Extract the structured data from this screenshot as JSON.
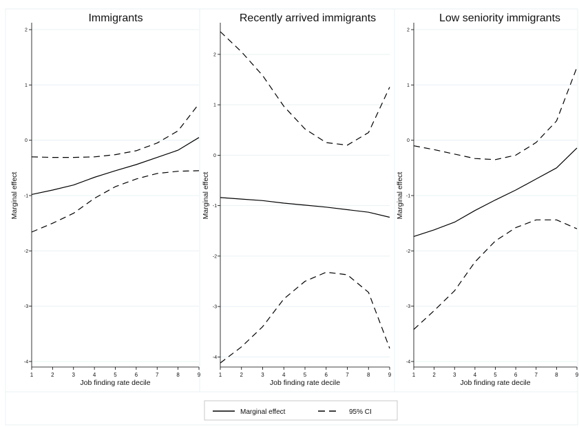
{
  "legend": {
    "items": [
      {
        "label": "Marginal effect",
        "dash": "solid"
      },
      {
        "label": "95% CI",
        "dash": "dashed"
      }
    ]
  },
  "chart_data": [
    {
      "type": "line",
      "title": "Immigrants",
      "xlabel": "Job finding rate decile",
      "ylabel": "Marginal effect",
      "x": [
        1,
        2,
        3,
        4,
        5,
        6,
        7,
        8,
        9
      ],
      "ylim": [
        -4.1,
        2.1
      ],
      "yticks": [
        -4,
        -3,
        -2,
        -1,
        0,
        1,
        2
      ],
      "grid": true,
      "series": [
        {
          "name": "Marginal effect",
          "values": [
            -0.98,
            -0.9,
            -0.81,
            -0.67,
            -0.55,
            -0.44,
            -0.31,
            -0.18,
            0.05
          ]
        },
        {
          "name": "95% CI",
          "values": [
            -0.3,
            -0.31,
            -0.31,
            -0.3,
            -0.26,
            -0.19,
            -0.05,
            0.17,
            0.66
          ]
        },
        {
          "name": "95% CI",
          "values": [
            -1.66,
            -1.5,
            -1.32,
            -1.05,
            -0.84,
            -0.7,
            -0.6,
            -0.56,
            -0.55
          ]
        }
      ]
    },
    {
      "type": "line",
      "title": "Recently arrived immigrants",
      "xlabel": "Job finding rate decile",
      "ylabel": "Marginal effect",
      "x": [
        1,
        2,
        3,
        4,
        5,
        6,
        7,
        8,
        9
      ],
      "ylim": [
        -4.2,
        2.6
      ],
      "yticks": [
        -4,
        -3,
        -2,
        -1,
        0,
        1,
        2
      ],
      "grid": true,
      "series": [
        {
          "name": "Marginal effect",
          "values": [
            -0.84,
            -0.87,
            -0.9,
            -0.95,
            -0.99,
            -1.03,
            -1.08,
            -1.13,
            -1.23
          ]
        },
        {
          "name": "95% CI",
          "values": [
            2.45,
            2.05,
            1.58,
            0.97,
            0.52,
            0.25,
            0.2,
            0.45,
            1.35
          ]
        },
        {
          "name": "95% CI",
          "values": [
            -4.12,
            -3.8,
            -3.4,
            -2.85,
            -2.5,
            -2.32,
            -2.37,
            -2.72,
            -3.83
          ]
        }
      ]
    },
    {
      "type": "line",
      "title": "Low seniority immigrants",
      "xlabel": "Job finding rate decile",
      "ylabel": "Marginal effect",
      "x": [
        1,
        2,
        3,
        4,
        5,
        6,
        7,
        8,
        9
      ],
      "ylim": [
        -4.1,
        2.1
      ],
      "yticks": [
        -4,
        -3,
        -2,
        -1,
        0,
        1,
        2
      ],
      "grid": true,
      "series": [
        {
          "name": "Marginal effect",
          "values": [
            -1.74,
            -1.62,
            -1.48,
            -1.27,
            -1.08,
            -0.9,
            -0.7,
            -0.5,
            -0.14
          ]
        },
        {
          "name": "95% CI",
          "values": [
            -0.1,
            -0.17,
            -0.25,
            -0.33,
            -0.35,
            -0.27,
            -0.04,
            0.35,
            1.32
          ]
        },
        {
          "name": "95% CI",
          "values": [
            -3.42,
            -3.08,
            -2.72,
            -2.2,
            -1.82,
            -1.58,
            -1.44,
            -1.44,
            -1.6
          ]
        }
      ]
    }
  ]
}
